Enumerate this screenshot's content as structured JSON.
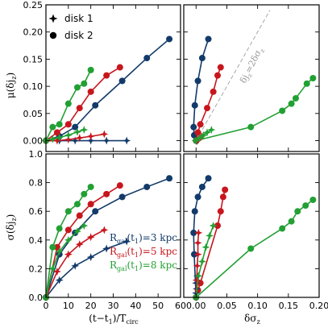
{
  "figure": {
    "legend": [
      {
        "marker": "star",
        "label": "disk 1"
      },
      {
        "marker": "circle",
        "label": "disk 2"
      }
    ],
    "radius_legend": [
      {
        "label": "R_gal(t_1)=3 kpc",
        "main": "R",
        "sub": "gal",
        "arg": "(t",
        "argsub": "1",
        "rest": ")=3 kpc",
        "color": "#123a6a"
      },
      {
        "label": "R_gal(t_1)=5 kpc",
        "main": "R",
        "sub": "gal",
        "arg": "(t",
        "argsub": "1",
        "rest": ")=5 kpc",
        "color": "#c8161d"
      },
      {
        "label": "R_gal(t_1)=8 kpc",
        "main": "R",
        "sub": "gal",
        "arg": "(t",
        "argsub": "1",
        "rest": ")=8 kpc",
        "color": "#22a033"
      }
    ],
    "annotation": "δj_z=2δσ_z"
  },
  "chart_data": [
    {
      "id": "top-left",
      "type": "line",
      "xlabel": "",
      "ylabel": "μ(δj_z)",
      "xlim": [
        0,
        60
      ],
      "ylim": [
        -0.02,
        0.25
      ],
      "xticks": [
        0,
        10,
        20,
        30,
        40,
        50,
        60
      ],
      "yticks": [
        0.0,
        0.05,
        0.1,
        0.15,
        0.2,
        0.25
      ],
      "ytick_labels": [
        "0.00",
        "0.05",
        "0.10",
        "0.15",
        "0.20",
        "0.25"
      ],
      "show_xtick_labels": false,
      "series": [
        {
          "color": "#123a6a",
          "marker": "circle",
          "x": [
            0,
            6,
            13,
            22,
            34,
            45,
            55
          ],
          "y": [
            0.0,
            0.008,
            0.025,
            0.065,
            0.11,
            0.152,
            0.187
          ]
        },
        {
          "color": "#c8161d",
          "marker": "circle",
          "x": [
            0,
            5,
            10,
            15,
            20,
            27,
            33
          ],
          "y": [
            0.0,
            0.015,
            0.03,
            0.06,
            0.09,
            0.12,
            0.135
          ]
        },
        {
          "color": "#22a033",
          "marker": "circle",
          "x": [
            0,
            3,
            6,
            10,
            14,
            17,
            20
          ],
          "y": [
            0.0,
            0.025,
            0.03,
            0.068,
            0.098,
            0.105,
            0.13
          ]
        },
        {
          "color": "#123a6a",
          "marker": "star",
          "x": [
            0,
            6,
            13,
            20,
            27,
            36
          ],
          "y": [
            0.0,
            0.0,
            0.0,
            0.0,
            0.0,
            0.0
          ]
        },
        {
          "color": "#c8161d",
          "marker": "star",
          "x": [
            0,
            5,
            10,
            15,
            20,
            26
          ],
          "y": [
            0.0,
            0.0,
            0.002,
            0.005,
            0.008,
            0.012
          ]
        },
        {
          "color": "#22a033",
          "marker": "star",
          "x": [
            0,
            3,
            6,
            10,
            14,
            17
          ],
          "y": [
            0.0,
            0.003,
            0.006,
            0.01,
            0.016,
            0.02
          ]
        }
      ]
    },
    {
      "id": "top-right",
      "type": "line",
      "xlabel": "",
      "ylabel": "",
      "xlim": [
        -0.02,
        0.2
      ],
      "ylim": [
        -0.02,
        0.25
      ],
      "xticks": [
        0.0,
        0.05,
        0.1,
        0.15,
        0.2
      ],
      "yticks": [
        0.0,
        0.05,
        0.1,
        0.15,
        0.2,
        0.25
      ],
      "show_xtick_labels": false,
      "show_ytick_labels": false,
      "reference_line": {
        "x": [
          0.0,
          0.12
        ],
        "y": [
          0.0,
          0.24
        ]
      },
      "series": [
        {
          "color": "#123a6a",
          "marker": "circle",
          "x": [
            0.0,
            -0.003,
            -0.004,
            -0.002,
            0.003,
            0.01,
            0.02
          ],
          "y": [
            0.0,
            0.01,
            0.025,
            0.065,
            0.11,
            0.152,
            0.187
          ]
        },
        {
          "color": "#c8161d",
          "marker": "circle",
          "x": [
            0.0,
            0.003,
            0.007,
            0.018,
            0.028,
            0.035,
            0.04
          ],
          "y": [
            0.0,
            0.015,
            0.03,
            0.06,
            0.09,
            0.12,
            0.135
          ]
        },
        {
          "color": "#22a033",
          "marker": "circle",
          "x": [
            0.0,
            0.089,
            0.14,
            0.155,
            0.162,
            0.18,
            0.19
          ],
          "y": [
            0.0,
            0.025,
            0.055,
            0.068,
            0.078,
            0.105,
            0.115
          ]
        },
        {
          "color": "#123a6a",
          "marker": "star",
          "x": [
            0.0,
            0.0,
            0.001,
            0.001,
            0.002
          ],
          "y": [
            0.0,
            0.0,
            0.0,
            0.0,
            0.0
          ]
        },
        {
          "color": "#c8161d",
          "marker": "star",
          "x": [
            0.0,
            0.002,
            0.004,
            0.006,
            0.009
          ],
          "y": [
            0.0,
            0.0,
            0.002,
            0.005,
            0.008
          ]
        },
        {
          "color": "#22a033",
          "marker": "star",
          "x": [
            0.0,
            0.006,
            0.012,
            0.018,
            0.025
          ],
          "y": [
            0.0,
            0.005,
            0.01,
            0.015,
            0.02
          ]
        }
      ]
    },
    {
      "id": "bottom-left",
      "type": "line",
      "xlabel": "(t−t_1)/T_circ",
      "ylabel": "σ(δj_z)",
      "xlim": [
        0,
        60
      ],
      "ylim": [
        0.0,
        1.0
      ],
      "xticks": [
        0,
        10,
        20,
        30,
        40,
        50,
        60
      ],
      "xtick_labels": [
        "0",
        "10",
        "20",
        "30",
        "40",
        "50",
        "60"
      ],
      "yticks": [
        0.0,
        0.2,
        0.4,
        0.6,
        0.8,
        1.0
      ],
      "ytick_labels": [
        "0.0",
        "0.2",
        "0.4",
        "0.6",
        "0.8",
        "1.0"
      ],
      "series": [
        {
          "color": "#123a6a",
          "marker": "circle",
          "x": [
            0,
            6,
            13,
            22,
            34,
            45,
            55
          ],
          "y": [
            0.0,
            0.3,
            0.45,
            0.6,
            0.7,
            0.77,
            0.83
          ]
        },
        {
          "color": "#c8161d",
          "marker": "circle",
          "x": [
            0,
            5,
            10,
            15,
            20,
            27,
            33
          ],
          "y": [
            0.0,
            0.35,
            0.47,
            0.57,
            0.65,
            0.72,
            0.78
          ]
        },
        {
          "color": "#22a033",
          "marker": "circle",
          "x": [
            0,
            3,
            6,
            10,
            14,
            17,
            20
          ],
          "y": [
            0.0,
            0.35,
            0.48,
            0.6,
            0.65,
            0.72,
            0.77
          ]
        },
        {
          "color": "#123a6a",
          "marker": "star",
          "x": [
            0,
            6,
            13,
            20,
            27,
            36
          ],
          "y": [
            0.0,
            0.12,
            0.22,
            0.28,
            0.34,
            0.39
          ]
        },
        {
          "color": "#c8161d",
          "marker": "star",
          "x": [
            0,
            5,
            10,
            15,
            20,
            26
          ],
          "y": [
            0.0,
            0.18,
            0.3,
            0.37,
            0.42,
            0.47
          ]
        },
        {
          "color": "#22a033",
          "marker": "star",
          "x": [
            0,
            3,
            6,
            10,
            14,
            17
          ],
          "y": [
            0.0,
            0.2,
            0.32,
            0.4,
            0.46,
            0.5
          ]
        }
      ]
    },
    {
      "id": "bottom-right",
      "type": "line",
      "xlabel": "δσ_z",
      "ylabel": "",
      "xlim": [
        -0.02,
        0.2
      ],
      "ylim": [
        0.0,
        1.0
      ],
      "xticks": [
        0.0,
        0.05,
        0.1,
        0.15,
        0.2
      ],
      "xtick_labels": [
        "0.00",
        "0.05",
        "0.10",
        "0.15",
        "0.20"
      ],
      "yticks": [
        0.0,
        0.2,
        0.4,
        0.6,
        0.8,
        1.0
      ],
      "show_ytick_labels": false,
      "series": [
        {
          "color": "#123a6a",
          "marker": "circle",
          "x": [
            0.0,
            -0.003,
            -0.004,
            -0.002,
            0.003,
            0.01,
            0.02
          ],
          "y": [
            0.0,
            0.3,
            0.45,
            0.6,
            0.7,
            0.77,
            0.83
          ]
        },
        {
          "color": "#c8161d",
          "marker": "circle",
          "x": [
            0.0,
            0.003,
            0.007,
            0.035,
            0.04,
            0.044,
            0.047
          ],
          "y": [
            0.0,
            0.05,
            0.1,
            0.5,
            0.6,
            0.7,
            0.75
          ]
        },
        {
          "color": "#22a033",
          "marker": "circle",
          "x": [
            0.0,
            0.089,
            0.14,
            0.155,
            0.165,
            0.178,
            0.19
          ],
          "y": [
            0.0,
            0.34,
            0.48,
            0.53,
            0.6,
            0.64,
            0.68
          ]
        },
        {
          "color": "#123a6a",
          "marker": "star",
          "x": [
            0.0,
            0.0,
            0.001,
            0.0,
            0.001,
            0.002
          ],
          "y": [
            0.0,
            0.03,
            0.06,
            0.1,
            0.12,
            0.15
          ]
        },
        {
          "color": "#c8161d",
          "marker": "star",
          "x": [
            0.0,
            0.001,
            0.002,
            0.003,
            0.003,
            0.004
          ],
          "y": [
            0.0,
            0.12,
            0.22,
            0.3,
            0.38,
            0.45
          ]
        },
        {
          "color": "#22a033",
          "marker": "star",
          "x": [
            0.0,
            0.004,
            0.01,
            0.016,
            0.022,
            0.028
          ],
          "y": [
            0.0,
            0.15,
            0.25,
            0.35,
            0.43,
            0.5
          ]
        }
      ]
    }
  ]
}
